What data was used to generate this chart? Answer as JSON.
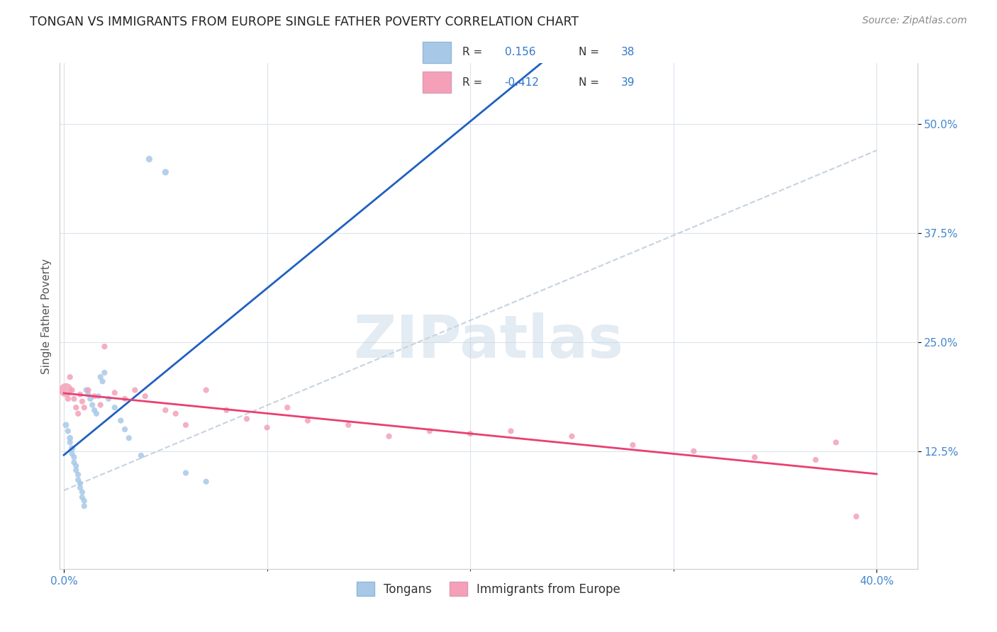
{
  "title": "TONGAN VS IMMIGRANTS FROM EUROPE SINGLE FATHER POVERTY CORRELATION CHART",
  "source": "Source: ZipAtlas.com",
  "ylabel": "Single Father Poverty",
  "ytick_labels": [
    "12.5%",
    "25.0%",
    "37.5%",
    "50.0%"
  ],
  "ytick_values": [
    0.125,
    0.25,
    0.375,
    0.5
  ],
  "xtick_labels": [
    "0.0%",
    "40.0%"
  ],
  "xtick_values": [
    0.0,
    0.4
  ],
  "xlim": [
    -0.002,
    0.42
  ],
  "ylim": [
    -0.01,
    0.57
  ],
  "legend_label1": "Tongans",
  "legend_label2": "Immigrants from Europe",
  "r1": 0.156,
  "n1": 38,
  "r2": -0.412,
  "n2": 39,
  "color1": "#a8c8e8",
  "color2": "#f4a0b8",
  "line1_color": "#2060c0",
  "line2_color": "#e84070",
  "dashed_color": "#b8c8d8",
  "watermark_color": "#c8d8e8",
  "tongans_x": [
    0.001,
    0.002,
    0.003,
    0.003,
    0.004,
    0.004,
    0.005,
    0.005,
    0.006,
    0.006,
    0.007,
    0.007,
    0.008,
    0.008,
    0.009,
    0.009,
    0.01,
    0.01,
    0.011,
    0.012,
    0.013,
    0.014,
    0.015,
    0.016,
    0.017,
    0.018,
    0.019,
    0.02,
    0.022,
    0.025,
    0.028,
    0.03,
    0.032,
    0.038,
    0.042,
    0.05,
    0.06,
    0.07
  ],
  "tongans_y": [
    0.155,
    0.148,
    0.14,
    0.135,
    0.128,
    0.122,
    0.118,
    0.112,
    0.108,
    0.103,
    0.098,
    0.092,
    0.088,
    0.083,
    0.078,
    0.072,
    0.068,
    0.062,
    0.195,
    0.19,
    0.185,
    0.178,
    0.172,
    0.168,
    0.188,
    0.21,
    0.205,
    0.215,
    0.185,
    0.175,
    0.16,
    0.15,
    0.14,
    0.12,
    0.46,
    0.445,
    0.1,
    0.09
  ],
  "tongans_size": [
    40,
    35,
    40,
    35,
    45,
    35,
    35,
    35,
    35,
    35,
    35,
    35,
    35,
    35,
    35,
    35,
    35,
    35,
    35,
    35,
    35,
    35,
    35,
    35,
    35,
    35,
    35,
    35,
    35,
    35,
    35,
    35,
    35,
    35,
    45,
    45,
    35,
    35
  ],
  "europe_x": [
    0.001,
    0.002,
    0.003,
    0.004,
    0.005,
    0.006,
    0.007,
    0.008,
    0.009,
    0.01,
    0.012,
    0.015,
    0.018,
    0.02,
    0.025,
    0.03,
    0.035,
    0.04,
    0.05,
    0.055,
    0.06,
    0.07,
    0.08,
    0.09,
    0.1,
    0.11,
    0.12,
    0.14,
    0.16,
    0.18,
    0.2,
    0.22,
    0.25,
    0.28,
    0.31,
    0.34,
    0.37,
    0.38,
    0.39
  ],
  "europe_y": [
    0.195,
    0.185,
    0.21,
    0.195,
    0.185,
    0.175,
    0.168,
    0.19,
    0.182,
    0.175,
    0.195,
    0.188,
    0.178,
    0.245,
    0.192,
    0.185,
    0.195,
    0.188,
    0.172,
    0.168,
    0.155,
    0.195,
    0.172,
    0.162,
    0.152,
    0.175,
    0.16,
    0.155,
    0.142,
    0.148,
    0.145,
    0.148,
    0.142,
    0.132,
    0.125,
    0.118,
    0.115,
    0.135,
    0.05
  ],
  "europe_size": [
    200,
    35,
    35,
    35,
    35,
    35,
    35,
    35,
    35,
    35,
    35,
    35,
    35,
    35,
    35,
    35,
    35,
    35,
    35,
    35,
    35,
    35,
    35,
    35,
    35,
    35,
    35,
    35,
    35,
    35,
    35,
    35,
    35,
    35,
    35,
    35,
    35,
    35,
    35
  ],
  "dashed_line_x": [
    0.0,
    0.4
  ],
  "dashed_line_y": [
    0.08,
    0.47
  ]
}
